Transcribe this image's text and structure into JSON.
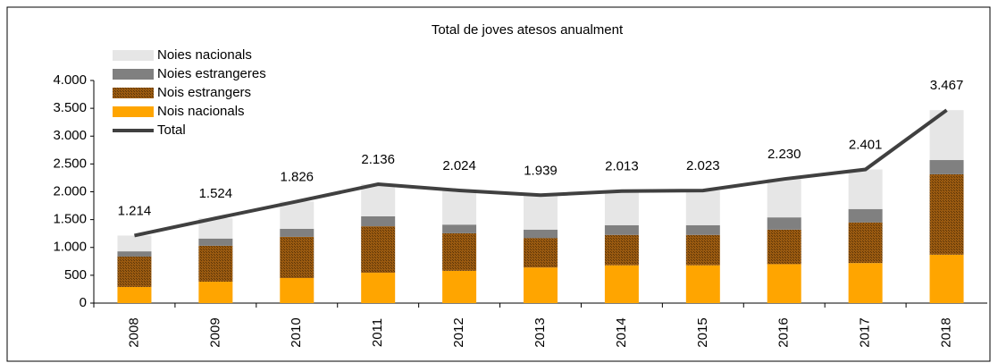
{
  "chart_data": {
    "type": "bar",
    "stacked": true,
    "title": "Total de joves atesos anualment",
    "categories": [
      "2008",
      "2009",
      "2010",
      "2011",
      "2012",
      "2013",
      "2014",
      "2015",
      "2016",
      "2017",
      "2018"
    ],
    "series": [
      {
        "name": "Nois nacionals",
        "color": "#ffa500",
        "values": [
          290,
          385,
          450,
          545,
          580,
          640,
          680,
          680,
          700,
          720,
          870
        ]
      },
      {
        "name": "Nois estrangers",
        "color": "#9a5a10",
        "values": [
          545,
          645,
          740,
          835,
          675,
          530,
          545,
          545,
          620,
          730,
          1445
        ]
      },
      {
        "name": "Noies estrangeres",
        "color": "#808080",
        "values": [
          95,
          130,
          145,
          180,
          155,
          150,
          175,
          175,
          220,
          240,
          255
        ]
      },
      {
        "name": "Noies nacionals",
        "color": "#e6e6e6",
        "values": [
          284,
          364,
          491,
          576,
          614,
          619,
          613,
          623,
          690,
          711,
          897
        ]
      },
      {
        "name": "Total",
        "type": "line",
        "color": "#404040",
        "values": [
          1214,
          1524,
          1826,
          2136,
          2024,
          1939,
          2013,
          2023,
          2230,
          2401,
          3467
        ],
        "value_labels": [
          "1.214",
          "1.524",
          "1.826",
          "2.136",
          "2.024",
          "1.939",
          "2.013",
          "2.023",
          "2.230",
          "2.401",
          "3.467"
        ]
      }
    ],
    "ylim": [
      0,
      4000
    ],
    "yticks": [
      0,
      500,
      {
        "value": 1000,
        "label": "1.000"
      },
      {
        "value": 1500,
        "label": "1.500"
      },
      {
        "value": 2000,
        "label": "2.000"
      },
      {
        "value": 2500,
        "label": "2.500"
      },
      {
        "value": 3000,
        "label": "3.000"
      },
      {
        "value": 3500,
        "label": "3.500"
      },
      {
        "value": 4000,
        "label": "4.000"
      }
    ],
    "grid": false,
    "legend": "top-left"
  }
}
